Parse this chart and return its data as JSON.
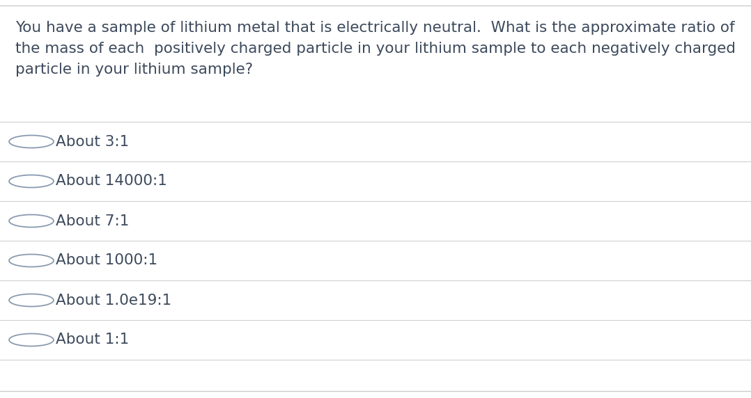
{
  "background_color": "#ffffff",
  "top_border_color": "#cccccc",
  "bottom_border_color": "#cccccc",
  "question_text_lines": [
    "You have a sample of lithium metal that is electrically neutral.  What is the approximate ratio of",
    "the mass of each  positively charged particle in your lithium sample to each negatively charged",
    "particle in your lithium sample?"
  ],
  "options": [
    "About 3:1",
    "About 14000:1",
    "About 7:1",
    "About 1000:1",
    "About 1.0e19:1",
    "About 1:1"
  ],
  "text_color": "#3d4a5c",
  "line_color": "#d0d0d0",
  "circle_edge_color": "#8a9ab0",
  "question_font_size": 15.5,
  "option_font_size": 15.5,
  "fig_width": 10.78,
  "fig_height": 5.72,
  "dpi": 100
}
